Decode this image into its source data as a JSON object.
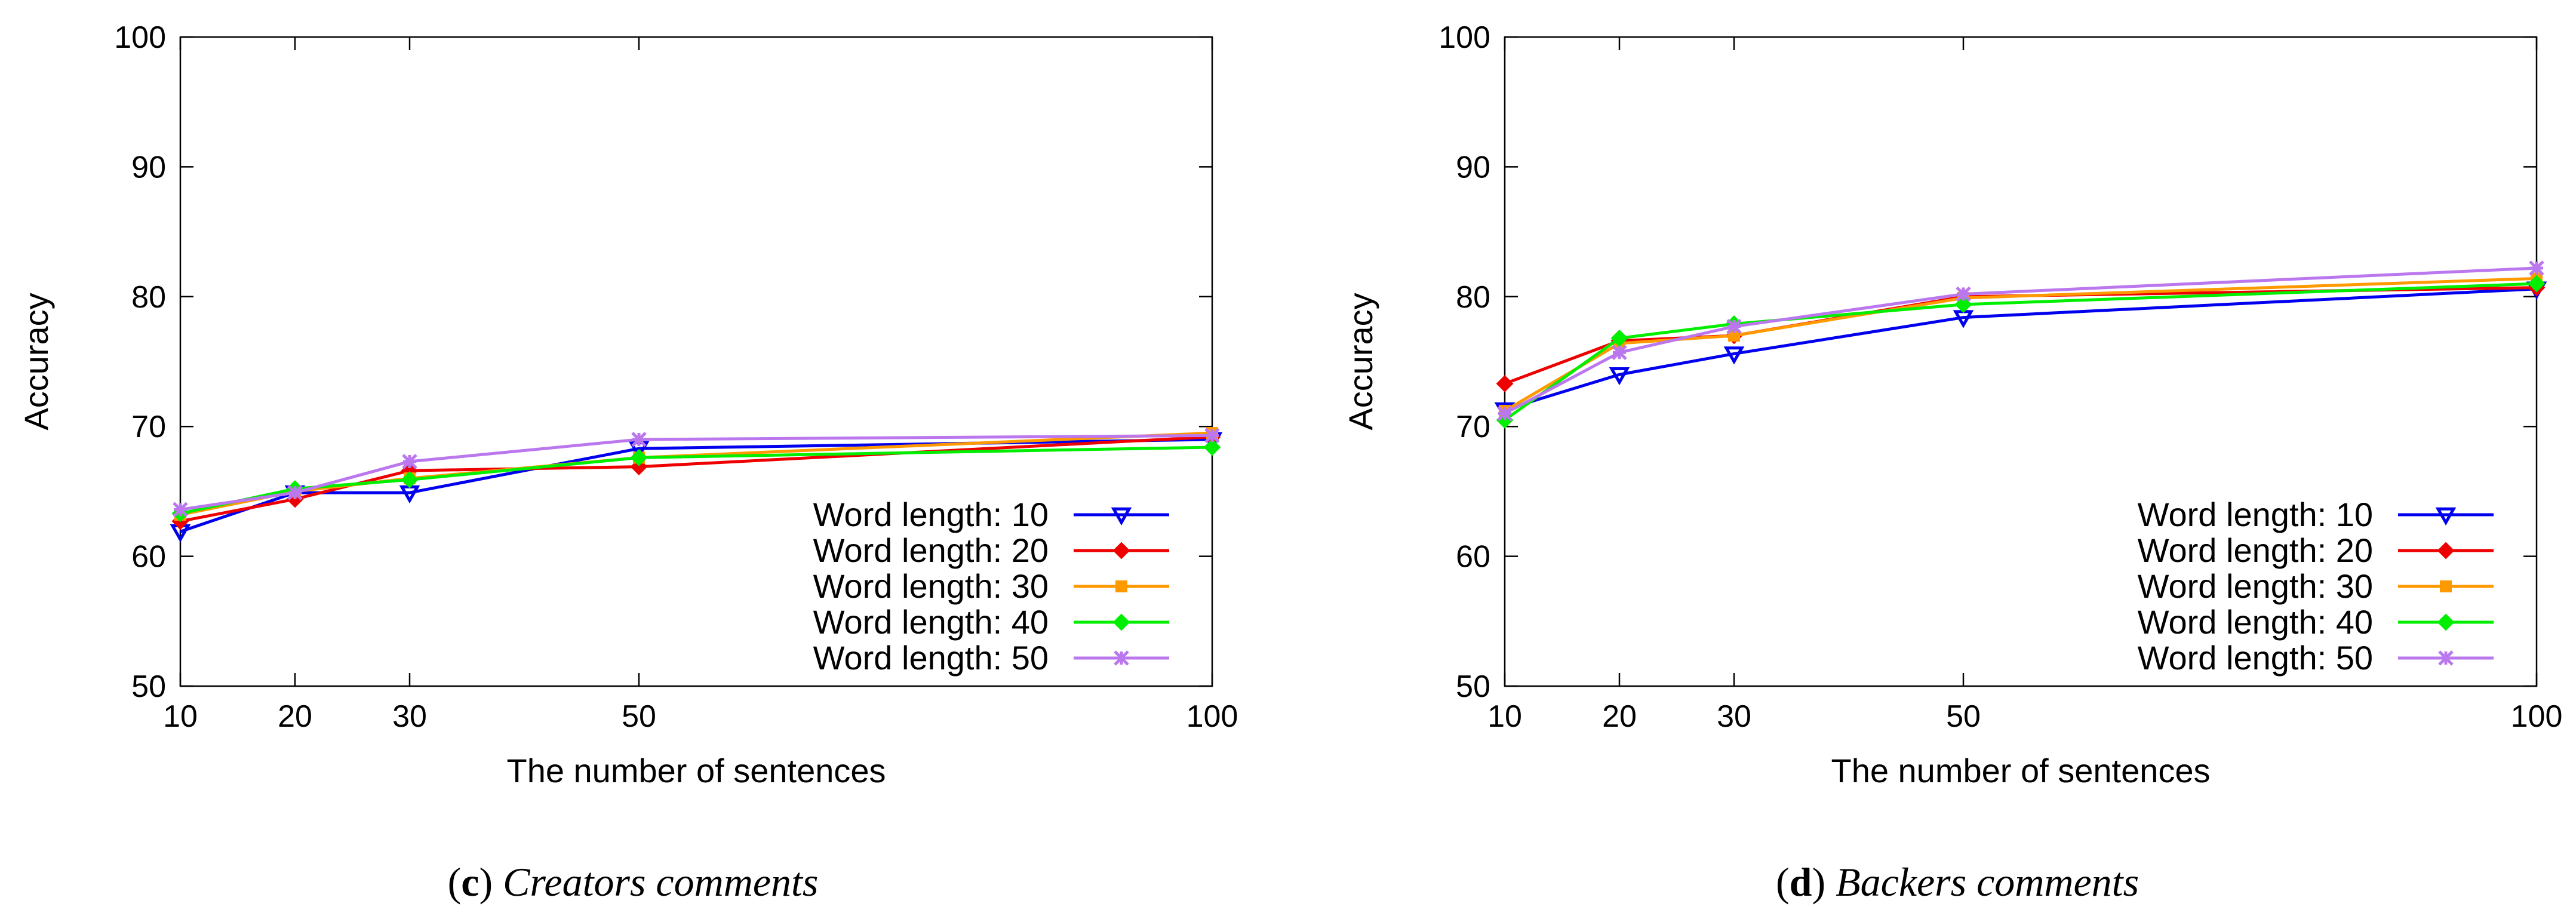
{
  "chart_data": [
    {
      "type": "line",
      "panel_letter": "c",
      "caption": "Creators comments",
      "xlabel": "The number of sentences",
      "ylabel": "Accuracy",
      "xlim": [
        10,
        100
      ],
      "ylim": [
        50,
        100
      ],
      "x": [
        10,
        20,
        30,
        50,
        100
      ],
      "xticks": [
        10,
        20,
        30,
        50,
        100
      ],
      "yticks": [
        50,
        60,
        70,
        80,
        90,
        100
      ],
      "grid": false,
      "legend_position": "bottom-right",
      "series": [
        {
          "name": "Word length: 10",
          "color": "#0000ee",
          "marker": "triangle-down",
          "values": [
            61.9,
            64.9,
            64.9,
            68.3,
            69.0
          ]
        },
        {
          "name": "Word length: 20",
          "color": "#ee0000",
          "marker": "diamond",
          "values": [
            62.7,
            64.4,
            66.6,
            66.9,
            69.2
          ]
        },
        {
          "name": "Word length: 30",
          "color": "#ff9900",
          "marker": "square",
          "values": [
            63.2,
            65.0,
            66.0,
            67.6,
            69.5
          ]
        },
        {
          "name": "Word length: 40",
          "color": "#00ee00",
          "marker": "diamond",
          "values": [
            63.3,
            65.2,
            65.9,
            67.6,
            68.4
          ]
        },
        {
          "name": "Word length: 50",
          "color": "#bb77ee",
          "marker": "asterisk",
          "values": [
            63.6,
            64.9,
            67.3,
            69.0,
            69.3
          ]
        }
      ]
    },
    {
      "type": "line",
      "panel_letter": "d",
      "caption": "Backers comments",
      "xlabel": "The number of sentences",
      "ylabel": "Accuracy",
      "xlim": [
        10,
        100
      ],
      "ylim": [
        50,
        100
      ],
      "x": [
        10,
        20,
        30,
        50,
        100
      ],
      "xticks": [
        10,
        20,
        30,
        50,
        100
      ],
      "yticks": [
        50,
        60,
        70,
        80,
        90,
        100
      ],
      "grid": false,
      "legend_position": "bottom-right",
      "series": [
        {
          "name": "Word length: 10",
          "color": "#0000ee",
          "marker": "triangle-down",
          "values": [
            71.3,
            74.0,
            75.6,
            78.4,
            80.6
          ]
        },
        {
          "name": "Word length: 20",
          "color": "#ee0000",
          "marker": "diamond",
          "values": [
            73.3,
            76.6,
            77.0,
            80.0,
            80.7
          ]
        },
        {
          "name": "Word length: 30",
          "color": "#ff9900",
          "marker": "square",
          "values": [
            71.2,
            76.4,
            77.0,
            79.9,
            81.4
          ]
        },
        {
          "name": "Word length: 40",
          "color": "#00ee00",
          "marker": "diamond",
          "values": [
            70.5,
            76.8,
            77.9,
            79.4,
            81.0
          ]
        },
        {
          "name": "Word length: 50",
          "color": "#bb77ee",
          "marker": "asterisk",
          "values": [
            71.0,
            75.7,
            77.7,
            80.2,
            82.2
          ]
        }
      ]
    }
  ]
}
